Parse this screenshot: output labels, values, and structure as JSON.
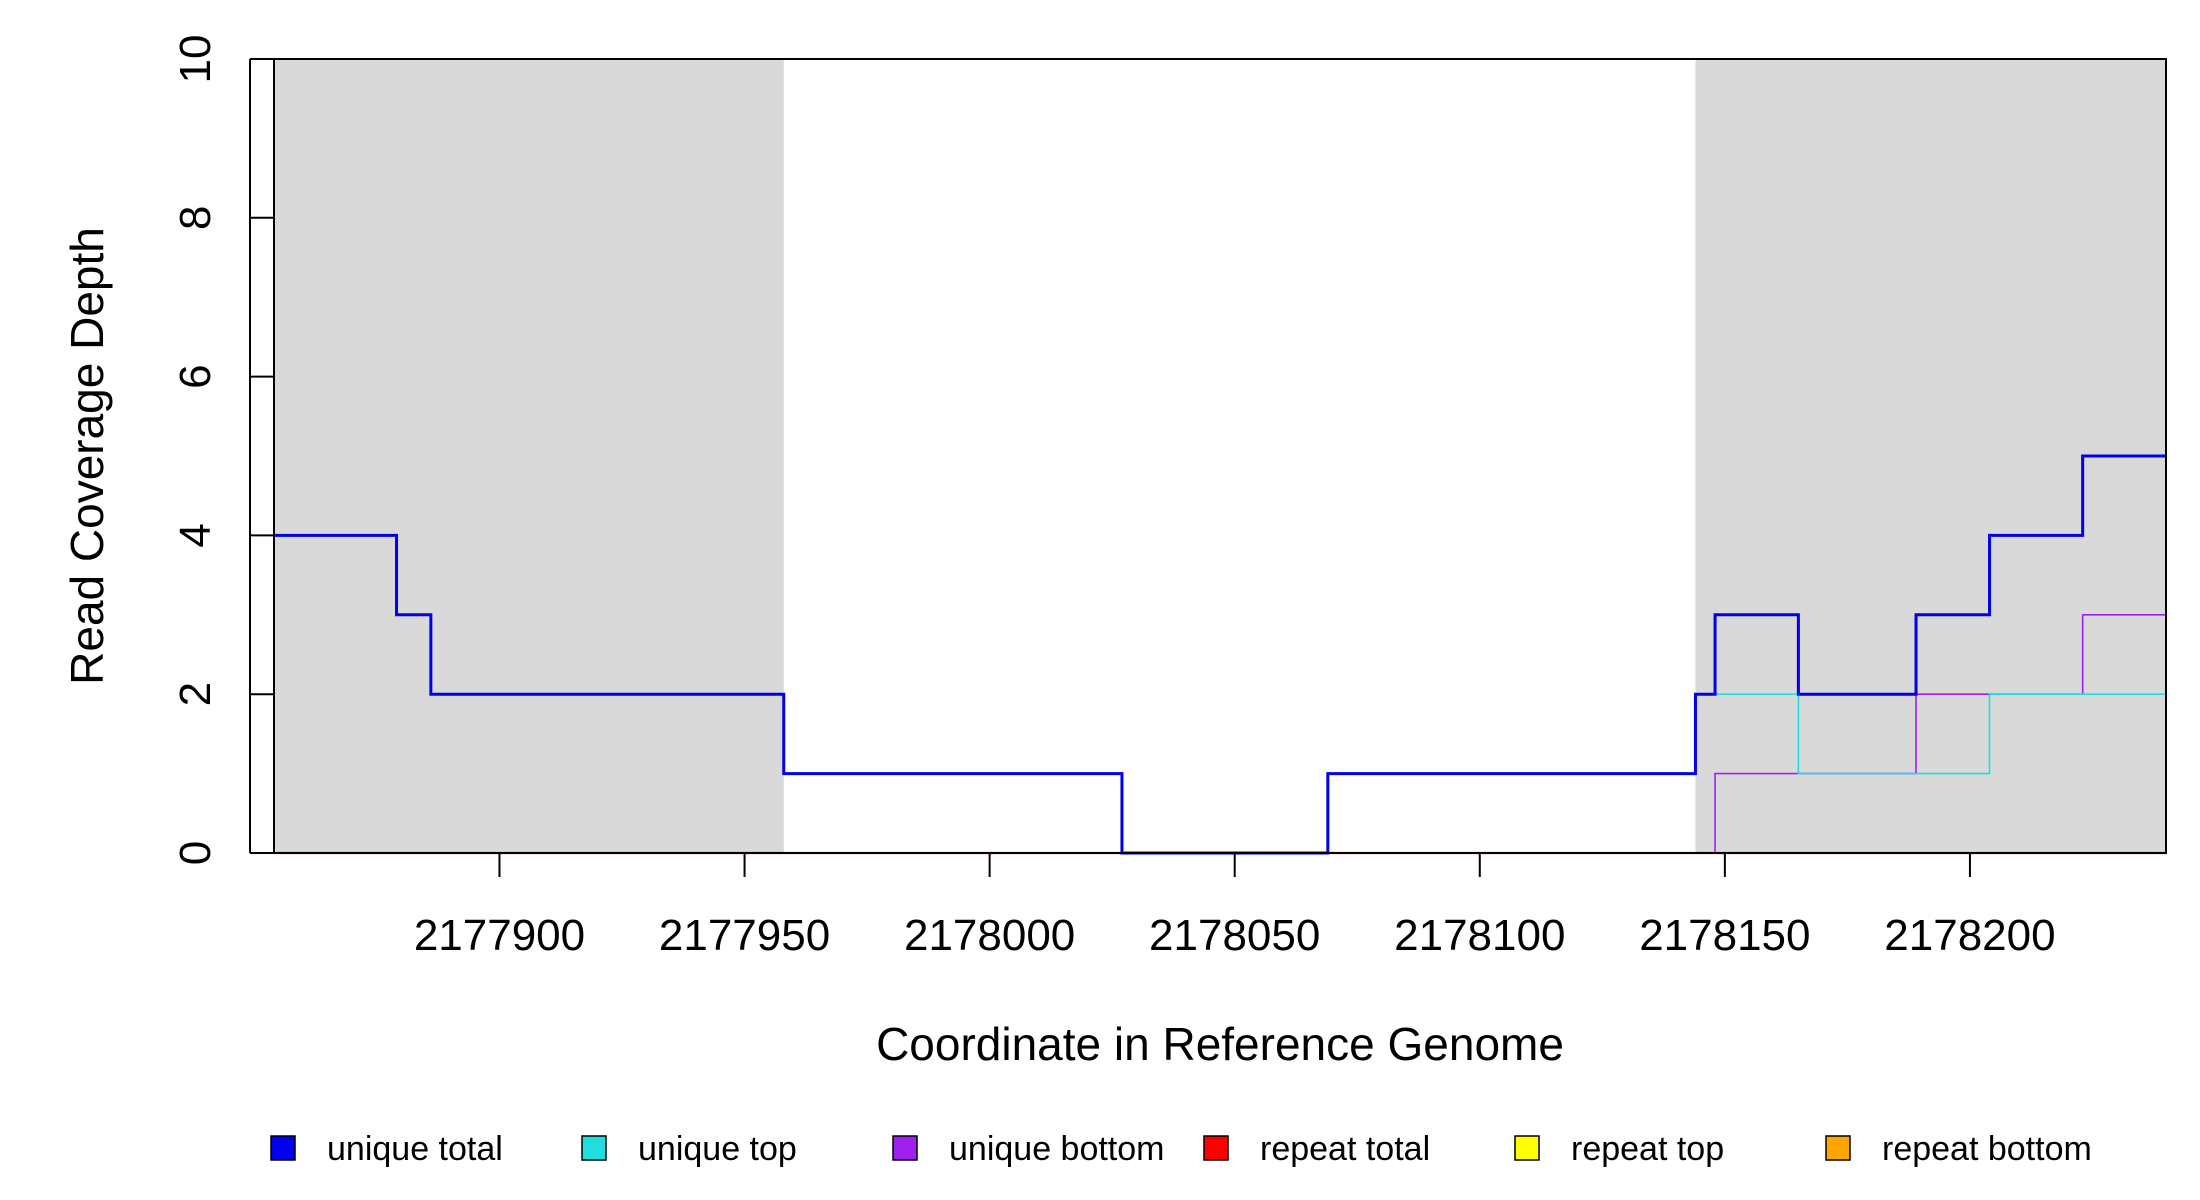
{
  "chart_data": {
    "type": "line",
    "step": true,
    "title": "",
    "xlabel": "Coordinate in Reference Genome",
    "ylabel": "Read Coverage Depth",
    "xlim": [
      2177854,
      2178240
    ],
    "ylim": [
      0,
      10
    ],
    "x_ticks": [
      2177900,
      2177950,
      2178000,
      2178050,
      2178100,
      2178150,
      2178200
    ],
    "x_tick_labels": [
      "2177900",
      "2177950",
      "2178000",
      "2178050",
      "2178100",
      "2178150",
      "2178200"
    ],
    "y_ticks": [
      0,
      2,
      4,
      6,
      8,
      10
    ],
    "y_tick_labels": [
      "0",
      "2",
      "4",
      "6",
      "8",
      "10"
    ],
    "grid": false,
    "shaded_regions": [
      {
        "x": [
          2177854,
          2177958
        ],
        "color": "#d9d9d9"
      },
      {
        "x": [
          2178144,
          2178240
        ],
        "color": "#d9d9d9"
      }
    ],
    "legend_position": "bottom",
    "series": [
      {
        "name": "unique total",
        "color": "#0000ee",
        "x": [
          2177854,
          2177879,
          2177886,
          2177958,
          2178027,
          2178069,
          2178144,
          2178148,
          2178165,
          2178189,
          2178204,
          2178223,
          2178240
        ],
        "y": [
          4,
          3,
          2,
          1,
          0,
          1,
          2,
          3,
          2,
          3,
          4,
          5,
          5
        ]
      },
      {
        "name": "unique top",
        "color": "#22dddd",
        "x": [
          2177854,
          2178069,
          2178144,
          2178165,
          2178204,
          2178240
        ],
        "y": [
          0,
          1,
          2,
          1,
          2,
          2
        ]
      },
      {
        "name": "unique bottom",
        "color": "#a020f0",
        "x": [
          2177854,
          2177879,
          2177886,
          2177958,
          2178027,
          2178148,
          2178189,
          2178223,
          2178240
        ],
        "y": [
          4,
          3,
          2,
          1,
          0,
          1,
          2,
          3,
          3
        ]
      },
      {
        "name": "repeat total",
        "color": "#ff0000",
        "x": [
          2177854,
          2178240
        ],
        "y": [
          0,
          0
        ]
      },
      {
        "name": "repeat top",
        "color": "#ffff00",
        "x": [
          2177854,
          2178240
        ],
        "y": [
          0,
          0
        ]
      },
      {
        "name": "repeat bottom",
        "color": "#ffa500",
        "x": [
          2177854,
          2178240
        ],
        "y": [
          0,
          0
        ]
      }
    ]
  }
}
